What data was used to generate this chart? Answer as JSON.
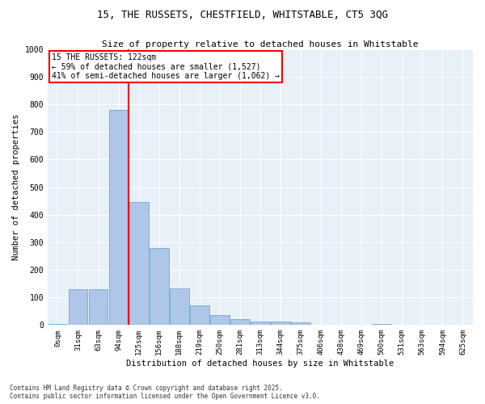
{
  "title_line1": "15, THE RUSSETS, CHESTFIELD, WHITSTABLE, CT5 3QG",
  "title_line2": "Size of property relative to detached houses in Whitstable",
  "xlabel": "Distribution of detached houses by size in Whitstable",
  "ylabel": "Number of detached properties",
  "bar_labels": [
    "0sqm",
    "31sqm",
    "63sqm",
    "94sqm",
    "125sqm",
    "156sqm",
    "188sqm",
    "219sqm",
    "250sqm",
    "281sqm",
    "313sqm",
    "344sqm",
    "375sqm",
    "406sqm",
    "438sqm",
    "469sqm",
    "500sqm",
    "531sqm",
    "563sqm",
    "594sqm",
    "625sqm"
  ],
  "bar_values": [
    5,
    130,
    130,
    780,
    445,
    278,
    133,
    70,
    37,
    22,
    12,
    12,
    10,
    0,
    0,
    0,
    5,
    0,
    0,
    0,
    0
  ],
  "bar_color": "#aec6e8",
  "bar_edge_color": "#5a9fd4",
  "vline_x": 4.0,
  "vline_color": "red",
  "annotation_text": "15 THE RUSSETS: 122sqm\n← 59% of detached houses are smaller (1,527)\n41% of semi-detached houses are larger (1,062) →",
  "annotation_box_color": "red",
  "annotation_text_color": "black",
  "background_color": "#e8f0f8",
  "ylim": [
    0,
    1000
  ],
  "yticks": [
    0,
    100,
    200,
    300,
    400,
    500,
    600,
    700,
    800,
    900,
    1000
  ],
  "footer_line1": "Contains HM Land Registry data © Crown copyright and database right 2025.",
  "footer_line2": "Contains public sector information licensed under the Open Government Licence v3.0."
}
